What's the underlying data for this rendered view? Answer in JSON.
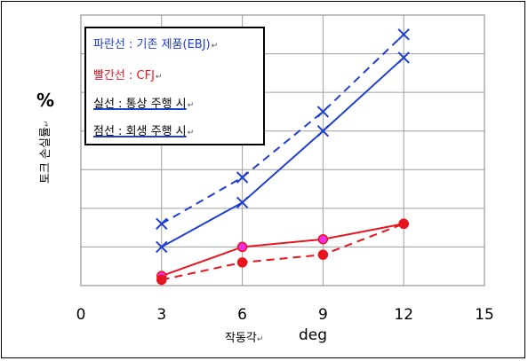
{
  "chart_data": {
    "type": "line",
    "xlabel": "작동각",
    "xunit": "deg",
    "ylabel": "토크 손실률",
    "yunit": "%",
    "xlim": [
      0,
      15
    ],
    "xticks": [
      "0",
      "3",
      "6",
      "9",
      "12",
      "15"
    ],
    "grid": true,
    "legend": {
      "position": "top-left",
      "lines": [
        {
          "text": "파란선 : 기존 제품(EBJ)",
          "color": "#1f3fd0"
        },
        {
          "text": "빨간선 : CFJ",
          "color": "#e8141e"
        },
        {
          "text": "실선 : 통상 주행 시",
          "color": "#000000"
        },
        {
          "text": "점선 : 회생 주행 시",
          "color": "#000000"
        }
      ]
    },
    "series": [
      {
        "color": "#1f3fd0",
        "dash": false,
        "marker": "x",
        "x": [
          3,
          6,
          9,
          12
        ],
        "y": [
          2.0,
          4.3,
          8.0,
          11.8
        ]
      },
      {
        "color": "#1f3fd0",
        "dash": true,
        "marker": "x",
        "x": [
          3,
          6,
          9,
          12
        ],
        "y": [
          3.2,
          5.6,
          9.0,
          13.0
        ]
      },
      {
        "color": "#e8141e",
        "dash": false,
        "marker": "circle",
        "x": [
          3,
          6,
          9,
          12
        ],
        "y": [
          0.5,
          2.0,
          2.4,
          3.2
        ]
      },
      {
        "color": "#e8141e",
        "dash": true,
        "marker": "circle",
        "x": [
          3,
          6,
          9,
          12
        ],
        "y": [
          0.3,
          1.2,
          1.6,
          3.2
        ]
      }
    ]
  }
}
